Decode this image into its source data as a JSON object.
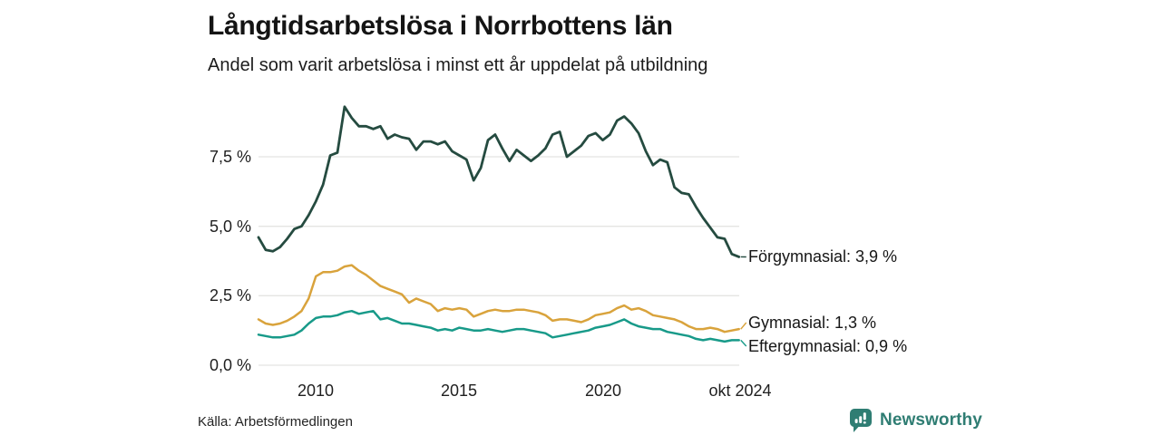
{
  "header": {
    "title": "Långtidsarbetslösa i Norrbottens län",
    "subtitle": "Andel som varit arbetslösa i minst ett år uppdelat på utbildning"
  },
  "footer": {
    "source": "Källa: Arbetsförmedlingen",
    "brand": "Newsworthy"
  },
  "colors": {
    "forgymnasial": "#254b40",
    "gymnasial": "#d9a33c",
    "eftergymnasial": "#189a89",
    "gridline": "#e4e4e2",
    "text": "#1a1a1a",
    "brand_teal": "#2f7d73"
  },
  "chart_data": {
    "type": "line",
    "title": "Långtidsarbetslösa i Norrbottens län",
    "subtitle": "Andel som varit arbetslösa i minst ett år uppdelat på utbildning",
    "unit": "%",
    "grid": "horizontal",
    "legend_position": "end-labels-right",
    "x_range": [
      2008,
      2024.79
    ],
    "y_range": [
      0,
      9.6
    ],
    "y_ticks": [
      {
        "v": 0.0,
        "label": "0,0 %"
      },
      {
        "v": 2.5,
        "label": "2,5 %"
      },
      {
        "v": 5.0,
        "label": "5,0 %"
      },
      {
        "v": 7.5,
        "label": "7,5 %"
      }
    ],
    "x_ticks": [
      {
        "x": 2010,
        "label": "2010"
      },
      {
        "x": 2015,
        "label": "2015"
      },
      {
        "x": 2020,
        "label": "2020"
      },
      {
        "x": 2024.79,
        "label": "okt 2024"
      }
    ],
    "x": [
      2008.0,
      2008.25,
      2008.5,
      2008.75,
      2009.0,
      2009.25,
      2009.5,
      2009.75,
      2010.0,
      2010.25,
      2010.5,
      2010.75,
      2011.0,
      2011.25,
      2011.5,
      2011.75,
      2012.0,
      2012.25,
      2012.5,
      2012.75,
      2013.0,
      2013.25,
      2013.5,
      2013.75,
      2014.0,
      2014.25,
      2014.5,
      2014.75,
      2015.0,
      2015.25,
      2015.5,
      2015.75,
      2016.0,
      2016.25,
      2016.5,
      2016.75,
      2017.0,
      2017.25,
      2017.5,
      2017.75,
      2018.0,
      2018.25,
      2018.5,
      2018.75,
      2019.0,
      2019.25,
      2019.5,
      2019.75,
      2020.0,
      2020.25,
      2020.5,
      2020.75,
      2021.0,
      2021.25,
      2021.5,
      2021.75,
      2022.0,
      2022.25,
      2022.5,
      2022.75,
      2023.0,
      2023.25,
      2023.5,
      2023.75,
      2024.0,
      2024.25,
      2024.5,
      2024.75
    ],
    "series": [
      {
        "name": "Förgymnasial",
        "end_label": "Förgymnasial: 3,9 %",
        "end_value": "3,9 %",
        "color": "#254b40",
        "values": [
          4.6,
          4.15,
          4.1,
          4.25,
          4.55,
          4.9,
          5.0,
          5.4,
          5.9,
          6.5,
          7.55,
          7.65,
          9.3,
          8.9,
          8.6,
          8.6,
          8.5,
          8.6,
          8.15,
          8.3,
          8.2,
          8.15,
          7.75,
          8.05,
          8.05,
          7.95,
          8.05,
          7.7,
          7.55,
          7.4,
          6.65,
          7.1,
          8.1,
          8.3,
          7.8,
          7.35,
          7.75,
          7.55,
          7.35,
          7.55,
          7.8,
          8.3,
          8.4,
          7.5,
          7.7,
          7.9,
          8.25,
          8.35,
          8.1,
          8.3,
          8.8,
          8.95,
          8.7,
          8.35,
          7.7,
          7.2,
          7.4,
          7.3,
          6.4,
          6.2,
          6.15,
          5.7,
          5.3,
          4.95,
          4.6,
          4.55,
          4.0,
          3.9
        ]
      },
      {
        "name": "Gymnasial",
        "end_label": "Gymnasial: 1,3 %",
        "end_value": "1,3 %",
        "color": "#d9a33c",
        "values": [
          1.65,
          1.5,
          1.45,
          1.5,
          1.6,
          1.75,
          1.95,
          2.4,
          3.2,
          3.35,
          3.35,
          3.4,
          3.55,
          3.6,
          3.4,
          3.25,
          3.05,
          2.85,
          2.75,
          2.65,
          2.55,
          2.25,
          2.4,
          2.3,
          2.2,
          1.95,
          2.05,
          2.0,
          2.05,
          2.0,
          1.75,
          1.85,
          1.95,
          2.0,
          1.95,
          1.95,
          2.0,
          2.0,
          1.95,
          1.9,
          1.8,
          1.6,
          1.65,
          1.65,
          1.6,
          1.55,
          1.65,
          1.8,
          1.85,
          1.9,
          2.05,
          2.15,
          2.0,
          2.05,
          1.95,
          1.8,
          1.75,
          1.7,
          1.65,
          1.55,
          1.4,
          1.3,
          1.3,
          1.35,
          1.3,
          1.2,
          1.25,
          1.3
        ]
      },
      {
        "name": "Eftergymnasial",
        "end_label": "Eftergymnasial: 0,9 %",
        "end_value": "0,9 %",
        "color": "#189a89",
        "values": [
          1.1,
          1.05,
          1.0,
          1.0,
          1.05,
          1.1,
          1.25,
          1.5,
          1.7,
          1.75,
          1.75,
          1.8,
          1.9,
          1.95,
          1.85,
          1.9,
          1.95,
          1.65,
          1.7,
          1.6,
          1.5,
          1.5,
          1.45,
          1.4,
          1.35,
          1.25,
          1.3,
          1.25,
          1.35,
          1.3,
          1.25,
          1.25,
          1.3,
          1.25,
          1.2,
          1.25,
          1.3,
          1.3,
          1.25,
          1.2,
          1.15,
          1.0,
          1.05,
          1.1,
          1.15,
          1.2,
          1.25,
          1.35,
          1.4,
          1.45,
          1.55,
          1.65,
          1.5,
          1.4,
          1.35,
          1.3,
          1.3,
          1.2,
          1.15,
          1.1,
          1.05,
          0.95,
          0.9,
          0.95,
          0.9,
          0.85,
          0.9,
          0.9
        ]
      }
    ]
  }
}
